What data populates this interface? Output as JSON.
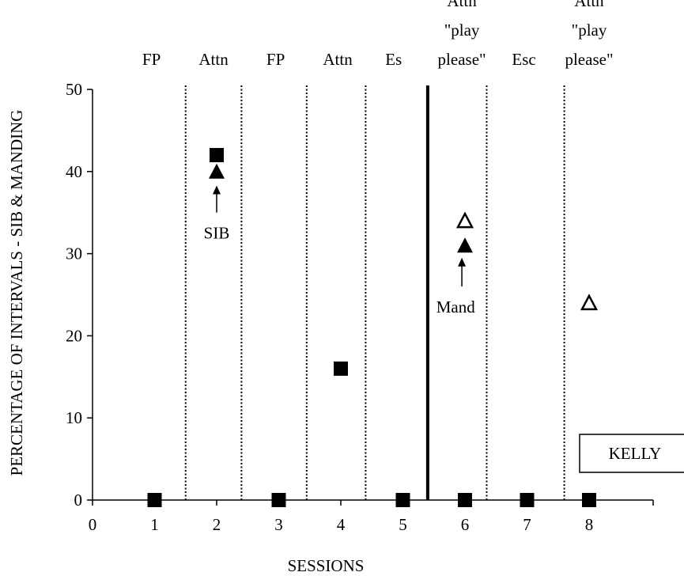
{
  "chart_data": {
    "type": "scatter",
    "xlabel": "SESSIONS",
    "ylabel": "PERCENTAGE OF INTERVALS - SIB & MANDING",
    "xlim": [
      0,
      9
    ],
    "ylim": [
      0,
      50
    ],
    "x_ticks": [
      "0",
      "1",
      "2",
      "3",
      "4",
      "5",
      "6",
      "7",
      "8"
    ],
    "y_ticks": [
      "0",
      "10",
      "20",
      "30",
      "40",
      "50"
    ],
    "phase_labels": [
      {
        "lines": [
          "FP"
        ],
        "x": 0.95
      },
      {
        "lines": [
          "Attn"
        ],
        "x": 1.95
      },
      {
        "lines": [
          "FP"
        ],
        "x": 2.95
      },
      {
        "lines": [
          "Attn"
        ],
        "x": 3.95
      },
      {
        "lines": [
          "Es"
        ],
        "x": 4.85
      },
      {
        "lines": [
          "Attn",
          "\"play",
          "please\""
        ],
        "x": 5.95
      },
      {
        "lines": [
          "Esc"
        ],
        "x": 6.95
      },
      {
        "lines": [
          "Attn",
          "\"play",
          "please\""
        ],
        "x": 8.0
      }
    ],
    "phase_lines": [
      {
        "x": 1.5,
        "style": "dotted"
      },
      {
        "x": 2.4,
        "style": "dotted"
      },
      {
        "x": 3.45,
        "style": "dotted"
      },
      {
        "x": 4.4,
        "style": "dotted"
      },
      {
        "x": 5.4,
        "style": "solid"
      },
      {
        "x": 6.35,
        "style": "dotted"
      },
      {
        "x": 7.6,
        "style": "dotted"
      }
    ],
    "series": [
      {
        "marker": "filled-square",
        "points": [
          [
            1,
            0
          ],
          [
            2,
            42
          ],
          [
            3,
            0
          ],
          [
            4,
            16
          ],
          [
            5,
            0
          ],
          [
            6,
            0
          ],
          [
            7,
            0
          ],
          [
            8,
            0
          ]
        ]
      },
      {
        "marker": "filled-triangle",
        "points": [
          [
            2,
            40
          ],
          [
            6,
            31
          ]
        ]
      },
      {
        "marker": "open-triangle",
        "points": [
          [
            6,
            34
          ],
          [
            8,
            24
          ]
        ]
      }
    ],
    "annotations": [
      {
        "text": "SIB",
        "x": 2.0,
        "y": 32.5,
        "arrow_to": [
          2.0,
          38.3
        ],
        "arrow_from": [
          2.0,
          35.0
        ]
      },
      {
        "text": "Mand",
        "x": 5.85,
        "y": 23.5,
        "arrow_to": [
          5.95,
          29.5
        ],
        "arrow_from": [
          5.95,
          26.0
        ]
      }
    ],
    "label_box": {
      "text": "KELLY"
    },
    "grid": false,
    "legend": "none"
  }
}
